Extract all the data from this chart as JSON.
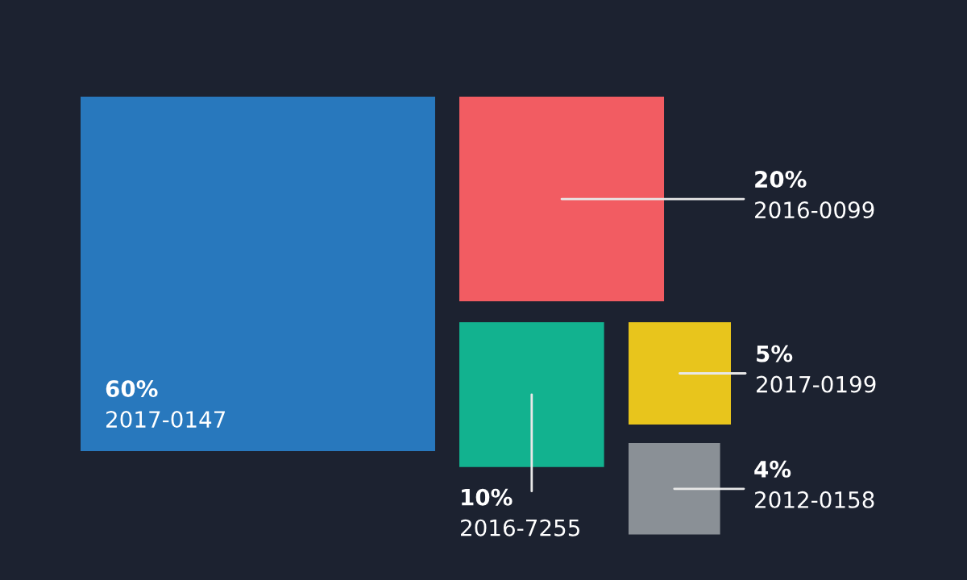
{
  "chart_data": {
    "type": "other",
    "categories": [
      "2017-0147",
      "2016-0099",
      "2016-7255",
      "2017-0199",
      "2012-0158"
    ],
    "values": [
      60,
      20,
      10,
      5,
      4
    ],
    "value_labels": [
      "60%",
      "20%",
      "10%",
      "5%",
      "4%"
    ],
    "colors": [
      "#2878bd",
      "#f25c62",
      "#12b28f",
      "#e8c51c",
      "#8a9096"
    ]
  }
}
